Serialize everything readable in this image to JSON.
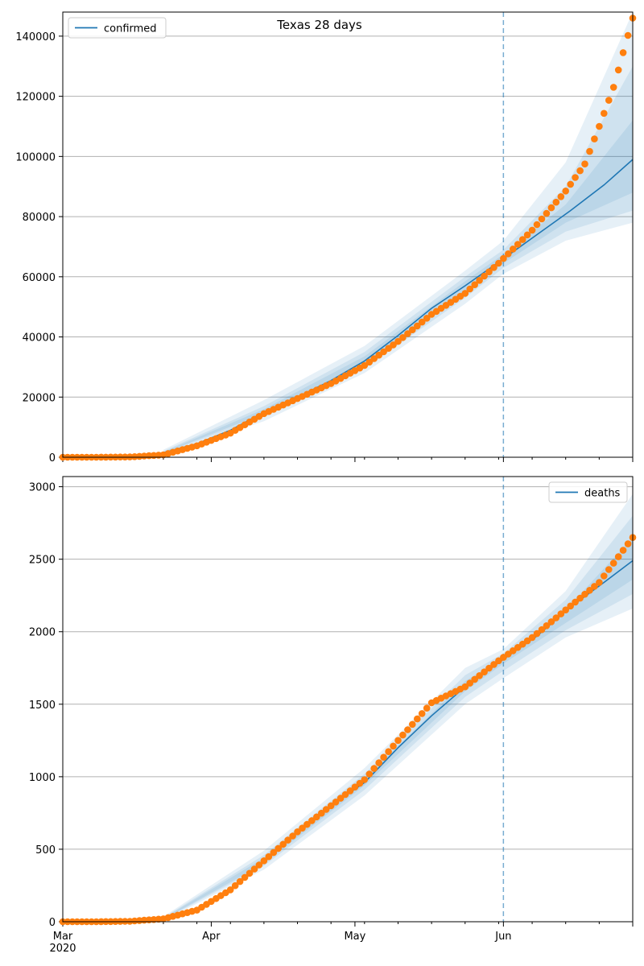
{
  "figure": {
    "title": "Texas 28 days",
    "x_tick_labels": [
      "Mar",
      "Apr",
      "May",
      "Jun"
    ],
    "x_year_label": "2020"
  },
  "colors": {
    "line": "#1f77b4",
    "points": "#ff7f0e",
    "band": "#1f77b4",
    "grid": "#b0b0b0",
    "forecast_line": "#1f77b4"
  },
  "chart_data": [
    {
      "type": "line",
      "title": "Texas 28 days",
      "legend": "top-left",
      "grid": true,
      "xlabel": "",
      "ylabel": "",
      "xlim": [
        "2020-03-01",
        "2020-06-28"
      ],
      "ylim": [
        0,
        148000
      ],
      "yticks": [
        0,
        20000,
        40000,
        60000,
        80000,
        100000,
        120000,
        140000
      ],
      "forecast_start": "2020-06-01",
      "series": [
        {
          "name": "confirmed",
          "kind": "line",
          "x": [
            "2020-03-15",
            "2020-03-22",
            "2020-03-29",
            "2020-04-05",
            "2020-04-12",
            "2020-04-19",
            "2020-04-26",
            "2020-05-03",
            "2020-05-10",
            "2020-05-17",
            "2020-05-24",
            "2020-06-01",
            "2020-06-08",
            "2020-06-15",
            "2020-06-22",
            "2020-06-28"
          ],
          "values": [
            300,
            1500,
            4500,
            9000,
            15000,
            20000,
            25500,
            32000,
            40500,
            49500,
            57000,
            66000,
            74000,
            82000,
            90500,
            99000
          ]
        },
        {
          "kind": "observed",
          "x": [
            "2020-03-01",
            "2020-03-08",
            "2020-03-15",
            "2020-03-22",
            "2020-03-29",
            "2020-04-05",
            "2020-04-12",
            "2020-04-19",
            "2020-04-26",
            "2020-05-03",
            "2020-05-10",
            "2020-05-17",
            "2020-05-24",
            "2020-05-31",
            "2020-06-07",
            "2020-06-14",
            "2020-06-18",
            "2020-06-21",
            "2020-06-24",
            "2020-06-26",
            "2020-06-28"
          ],
          "values": [
            0,
            0,
            100,
            800,
            3800,
            8000,
            14500,
            19500,
            24500,
            30500,
            38500,
            47500,
            54500,
            64500,
            75500,
            88500,
            97500,
            110000,
            123000,
            134500,
            146000
          ]
        }
      ],
      "bands": [
        {
          "x": [
            "2020-03-22",
            "2020-04-12",
            "2020-05-03",
            "2020-05-24",
            "2020-06-01",
            "2020-06-14",
            "2020-06-28"
          ],
          "lower": [
            1000,
            12000,
            28000,
            51000,
            61000,
            72000,
            78000
          ],
          "upper": [
            2500,
            19000,
            37000,
            62000,
            72000,
            98000,
            148000
          ]
        },
        {
          "x": [
            "2020-03-22",
            "2020-04-12",
            "2020-05-03",
            "2020-05-24",
            "2020-06-01",
            "2020-06-14",
            "2020-06-28"
          ],
          "lower": [
            1200,
            13500,
            29500,
            53000,
            63000,
            75000,
            82000
          ],
          "upper": [
            2000,
            17000,
            35000,
            60000,
            69000,
            90000,
            130000
          ]
        },
        {
          "x": [
            "2020-03-22",
            "2020-04-12",
            "2020-05-03",
            "2020-05-24",
            "2020-06-01",
            "2020-06-14",
            "2020-06-28"
          ],
          "lower": [
            1400,
            14500,
            31000,
            55000,
            64500,
            78000,
            88000
          ],
          "upper": [
            1700,
            16000,
            33500,
            58500,
            67500,
            84000,
            112000
          ]
        }
      ]
    },
    {
      "type": "line",
      "title": "",
      "legend": "top-right",
      "grid": true,
      "xlabel": "",
      "ylabel": "",
      "xlim": [
        "2020-03-01",
        "2020-06-28"
      ],
      "ylim": [
        0,
        3070
      ],
      "yticks": [
        0,
        500,
        1000,
        1500,
        2000,
        2500,
        3000
      ],
      "forecast_start": "2020-06-01",
      "series": [
        {
          "name": "deaths",
          "kind": "line",
          "x": [
            "2020-03-15",
            "2020-03-22",
            "2020-03-29",
            "2020-04-05",
            "2020-04-12",
            "2020-04-19",
            "2020-04-26",
            "2020-05-03",
            "2020-05-10",
            "2020-05-17",
            "2020-05-24",
            "2020-06-01",
            "2020-06-08",
            "2020-06-15",
            "2020-06-22",
            "2020-06-28"
          ],
          "values": [
            8,
            20,
            80,
            230,
            420,
            620,
            800,
            960,
            1200,
            1420,
            1620,
            1810,
            1970,
            2170,
            2340,
            2490
          ]
        },
        {
          "kind": "observed",
          "x": [
            "2020-03-01",
            "2020-03-08",
            "2020-03-15",
            "2020-03-22",
            "2020-03-29",
            "2020-04-05",
            "2020-04-12",
            "2020-04-19",
            "2020-04-26",
            "2020-05-03",
            "2020-05-10",
            "2020-05-17",
            "2020-05-24",
            "2020-05-31",
            "2020-06-07",
            "2020-06-14",
            "2020-06-21",
            "2020-06-28"
          ],
          "values": [
            0,
            0,
            3,
            20,
            80,
            220,
            420,
            620,
            800,
            980,
            1250,
            1510,
            1620,
            1800,
            1960,
            2150,
            2340,
            2650
          ]
        }
      ],
      "bands": [
        {
          "x": [
            "2020-03-22",
            "2020-04-12",
            "2020-05-03",
            "2020-05-24",
            "2020-06-01",
            "2020-06-14",
            "2020-06-28"
          ],
          "lower": [
            8,
            360,
            870,
            1500,
            1680,
            1960,
            2160
          ],
          "upper": [
            35,
            490,
            1060,
            1750,
            1880,
            2280,
            2950
          ]
        },
        {
          "x": [
            "2020-03-22",
            "2020-04-12",
            "2020-05-03",
            "2020-05-24",
            "2020-06-01",
            "2020-06-14",
            "2020-06-28"
          ],
          "lower": [
            12,
            385,
            910,
            1550,
            1730,
            2010,
            2260
          ],
          "upper": [
            28,
            460,
            1020,
            1700,
            1850,
            2220,
            2800
          ]
        },
        {
          "x": [
            "2020-03-22",
            "2020-04-12",
            "2020-05-03",
            "2020-05-24",
            "2020-06-01",
            "2020-06-14",
            "2020-06-28"
          ],
          "lower": [
            16,
            400,
            940,
            1590,
            1780,
            2060,
            2360
          ],
          "upper": [
            24,
            440,
            990,
            1660,
            1820,
            2150,
            2650
          ]
        }
      ]
    }
  ]
}
